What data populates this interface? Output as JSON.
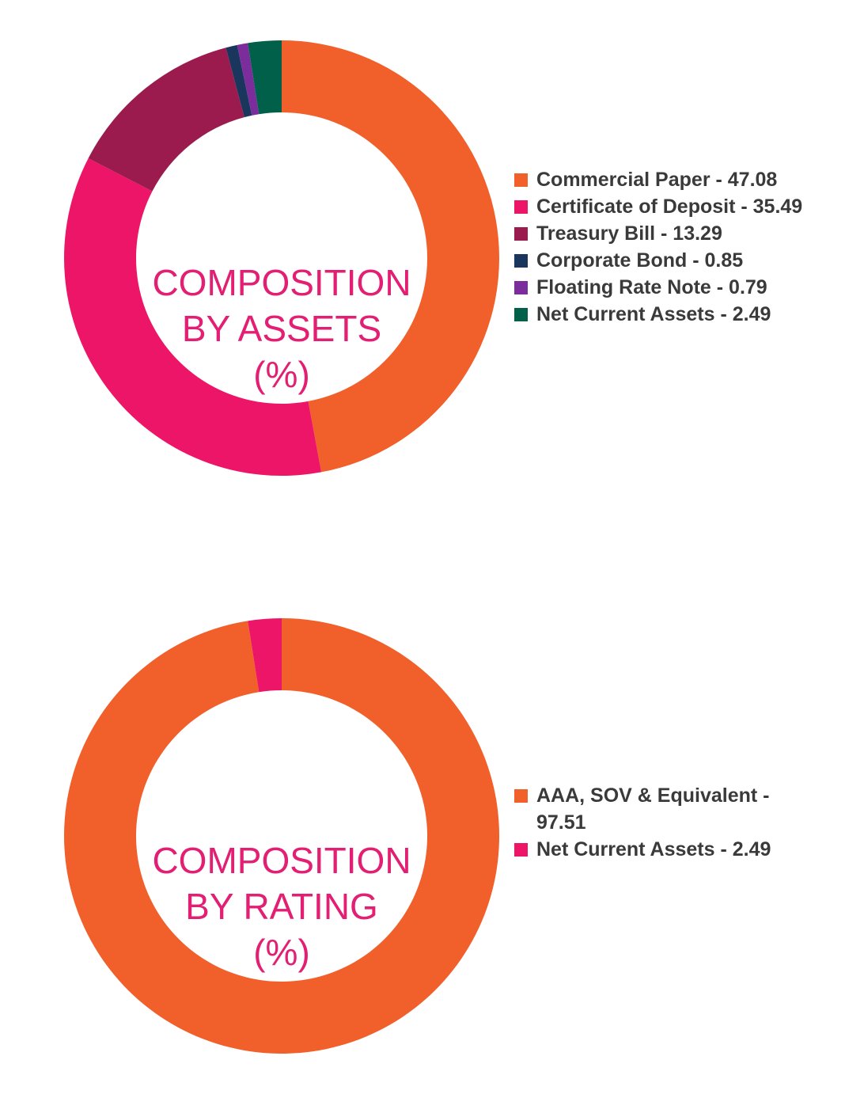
{
  "chart_data": [
    {
      "type": "pie",
      "variant": "donut",
      "title_lines": [
        "COMPOSITION",
        "BY ASSETS",
        "(%)"
      ],
      "legend_placement": "right",
      "slices": [
        {
          "label": "Commercial Paper - 47.08",
          "value": 47.08,
          "color": "#f15f2a"
        },
        {
          "label": "Certificate of Deposit - 35.49",
          "value": 35.49,
          "color": "#ec1568"
        },
        {
          "label": "Treasury Bill - 13.29",
          "value": 13.29,
          "color": "#9b1b4f"
        },
        {
          "label": "Corporate Bond - 0.85",
          "value": 0.85,
          "color": "#1b365d"
        },
        {
          "label": "Floating Rate Note - 0.79",
          "value": 0.79,
          "color": "#7b2d9c"
        },
        {
          "label": "Net Current Assets - 2.49",
          "value": 2.49,
          "color": "#00604a"
        }
      ]
    },
    {
      "type": "pie",
      "variant": "donut",
      "title_lines": [
        "COMPOSITION",
        "BY RATING",
        "(%)"
      ],
      "legend_placement": "right",
      "slices": [
        {
          "label": "AAA, SOV & Equivalent - 97.51",
          "value": 97.51,
          "color": "#f15f2a"
        },
        {
          "label": "Net Current Assets - 2.49",
          "value": 2.49,
          "color": "#ec1568"
        }
      ]
    }
  ]
}
